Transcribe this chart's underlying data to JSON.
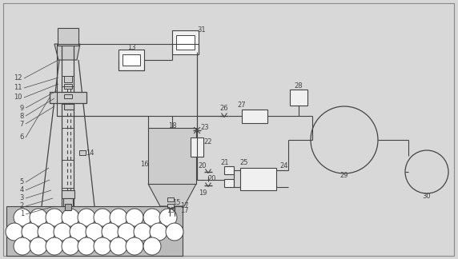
{
  "bg": "#d8d8d8",
  "lc": "#444444",
  "fc_light": "#cccccc",
  "fc_white": "#f0f0f0",
  "fig_w": 5.72,
  "fig_h": 3.24,
  "dpi": 100
}
